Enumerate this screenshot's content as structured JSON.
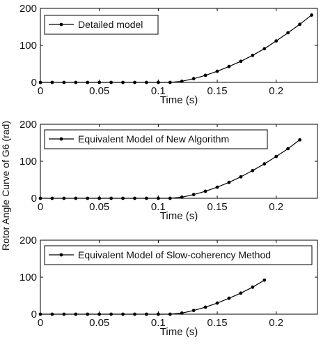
{
  "figure": {
    "ylabel": "Rotor Angle Curve of G6 (rad)"
  },
  "chart_data": [
    {
      "type": "line",
      "xlabel": "Time (s)",
      "xlim": [
        0,
        0.235
      ],
      "ylim": [
        0,
        200
      ],
      "xticks": [
        0,
        0.05,
        0.1,
        0.15,
        0.2
      ],
      "xtick_labels": [
        "0",
        "0.05",
        "0.1",
        "0.15",
        "0.2"
      ],
      "yticks": [
        0,
        100,
        200
      ],
      "ytick_labels": [
        "0",
        "100",
        "200"
      ],
      "legend": "top-left",
      "series": [
        {
          "name": "Detailed model",
          "x": [
            0,
            0.01,
            0.02,
            0.03,
            0.04,
            0.05,
            0.06,
            0.07,
            0.08,
            0.09,
            0.1,
            0.11,
            0.12,
            0.13,
            0.14,
            0.15,
            0.16,
            0.17,
            0.18,
            0.19,
            0.2,
            0.21,
            0.22,
            0.23
          ],
          "y": [
            0,
            0,
            0,
            0,
            0,
            0,
            0,
            0,
            0,
            0,
            0,
            0,
            3,
            10,
            19,
            30,
            43,
            57,
            73,
            91,
            112,
            134,
            157,
            182
          ]
        }
      ]
    },
    {
      "type": "line",
      "xlabel": "Time (s)",
      "xlim": [
        0,
        0.235
      ],
      "ylim": [
        0,
        200
      ],
      "xticks": [
        0,
        0.05,
        0.1,
        0.15,
        0.2
      ],
      "xtick_labels": [
        "0",
        "0.05",
        "0.1",
        "0.15",
        "0.2"
      ],
      "yticks": [
        0,
        100,
        200
      ],
      "ytick_labels": [
        "0",
        "100",
        "200"
      ],
      "legend": "top-left",
      "series": [
        {
          "name": "Equivalent Model of New Algorithm",
          "x": [
            0,
            0.01,
            0.02,
            0.03,
            0.04,
            0.05,
            0.06,
            0.07,
            0.08,
            0.09,
            0.1,
            0.11,
            0.12,
            0.13,
            0.14,
            0.15,
            0.16,
            0.17,
            0.18,
            0.19,
            0.2,
            0.21,
            0.22
          ],
          "y": [
            0,
            0,
            0,
            0,
            0,
            0,
            0,
            0,
            0,
            0,
            0,
            0,
            3,
            10,
            19,
            30,
            43,
            58,
            75,
            93,
            113,
            134,
            158
          ]
        }
      ]
    },
    {
      "type": "line",
      "xlabel": "Time (s)",
      "xlim": [
        0,
        0.235
      ],
      "ylim": [
        0,
        200
      ],
      "xticks": [
        0,
        0.05,
        0.1,
        0.15,
        0.2
      ],
      "xtick_labels": [
        "0",
        "0.05",
        "0.1",
        "0.15",
        "0.2"
      ],
      "yticks": [
        0,
        100,
        200
      ],
      "ytick_labels": [
        "0",
        "100",
        "200"
      ],
      "legend": "top-left",
      "series": [
        {
          "name": "Equivalent Model of Slow-coherency Method",
          "x": [
            0,
            0.01,
            0.02,
            0.03,
            0.04,
            0.05,
            0.06,
            0.07,
            0.08,
            0.09,
            0.1,
            0.11,
            0.12,
            0.13,
            0.14,
            0.15,
            0.16,
            0.17,
            0.18,
            0.19
          ],
          "y": [
            0,
            0,
            0,
            0,
            0,
            0,
            0,
            0,
            0,
            0,
            0,
            0,
            3,
            10,
            19,
            30,
            43,
            57,
            73,
            92
          ]
        }
      ]
    }
  ]
}
